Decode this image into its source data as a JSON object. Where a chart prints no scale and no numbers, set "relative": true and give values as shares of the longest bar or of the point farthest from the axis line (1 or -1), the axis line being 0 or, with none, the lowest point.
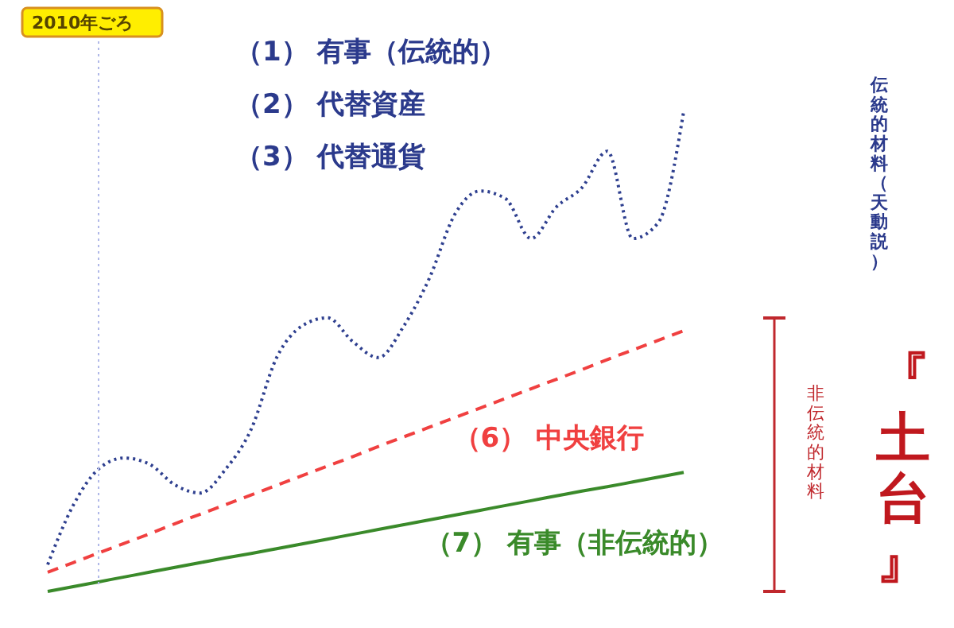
{
  "chart_data": {
    "type": "line",
    "relative": true,
    "categories": [
      null,
      null,
      null,
      null,
      null,
      null,
      null,
      null,
      null,
      null,
      null,
      null,
      null,
      null,
      null,
      null,
      null,
      null,
      null,
      null,
      null,
      null,
      null,
      null,
      null,
      null
    ],
    "series": [
      {
        "color": "#2e3f8f",
        "line_style": "dotted",
        "values": [
          0.056,
          0.179,
          0.255,
          0.278,
          0.265,
          0.222,
          0.205,
          0.255,
          0.338,
          0.487,
          0.553,
          0.57,
          0.52,
          0.487,
          0.553,
          0.652,
          0.785,
          0.834,
          0.818,
          0.735,
          0.801,
          0.841,
          0.917,
          0.735,
          0.768,
          1.0
        ]
      },
      {
        "name": "（6） 中央銀行",
        "color": "#f04040",
        "line_style": "dashed",
        "values": [
          0.04,
          0.06,
          0.08,
          0.1,
          0.12,
          0.141,
          0.161,
          0.181,
          0.201,
          0.221,
          0.241,
          0.261,
          0.281,
          0.302,
          0.322,
          0.342,
          0.362,
          0.382,
          0.402,
          0.422,
          0.442,
          0.462,
          0.483,
          0.503,
          0.523,
          0.543
        ]
      },
      {
        "name": "（7） 有事（非伝統的）",
        "color": "#3a8a2a",
        "line_style": "solid",
        "values": [
          0,
          0.01,
          0.02,
          0.03,
          0.04,
          0.05,
          0.06,
          0.07,
          0.079,
          0.089,
          0.099,
          0.109,
          0.119,
          0.129,
          0.139,
          0.149,
          0.159,
          0.169,
          0.179,
          0.189,
          0.199,
          0.209,
          0.218,
          0.228,
          0.238,
          0.248
        ]
      }
    ],
    "annotations": [
      "（1） 有事（伝統的）",
      "（2） 代替資産",
      "（3） 代替通貨",
      "伝統的材料（天動説）",
      "『土台』",
      "2010年ごろ",
      "非伝統的材料"
    ]
  }
}
